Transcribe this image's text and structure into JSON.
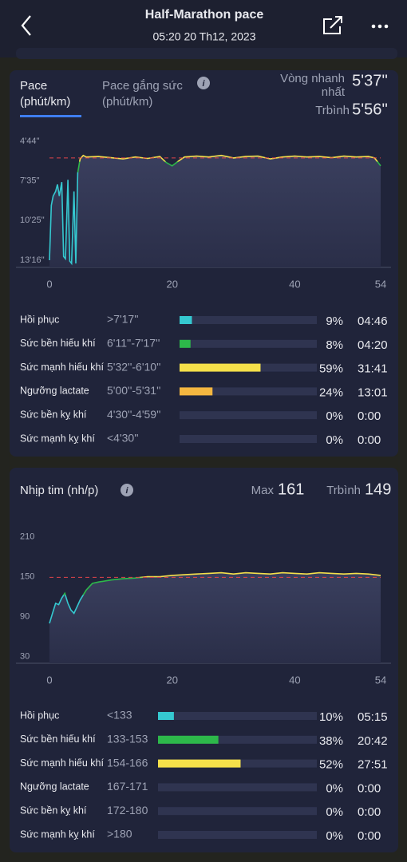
{
  "header": {
    "title": "Half-Marathon pace",
    "subtitle": "05:20 20 Th12, 2023"
  },
  "pace_card": {
    "tab": "Pace",
    "tab_unit": "(phút/km)",
    "tab2": "Pace gắng sức",
    "tab2_unit": "(phút/km)",
    "best_label": "Vòng nhanh nhất",
    "best_value": "5'37''",
    "avg_label": "Trbình",
    "avg_value": "5'56''",
    "chart_data": {
      "type": "line",
      "line_colors": [
        "#f5e04a",
        "#2db84a",
        "#35c8d0"
      ],
      "avg_color": "#e0434a",
      "avg": 356,
      "x": [
        0,
        0.3,
        0.6,
        1,
        1.3,
        1.6,
        2,
        2.3,
        2.6,
        3,
        3.3,
        3.6,
        4,
        4.3,
        4.6,
        5,
        5.5,
        6,
        8,
        10,
        12,
        14,
        16,
        18,
        19,
        20,
        21,
        22,
        24,
        26,
        28,
        30,
        32,
        34,
        36,
        38,
        40,
        42,
        44,
        46,
        48,
        50,
        52,
        53,
        54
      ],
      "values": [
        796,
        560,
        520,
        500,
        470,
        520,
        460,
        780,
        790,
        450,
        800,
        810,
        500,
        810,
        420,
        360,
        345,
        352,
        350,
        355,
        360,
        352,
        358,
        350,
        375,
        390,
        370,
        352,
        348,
        352,
        345,
        356,
        350,
        348,
        360,
        352,
        348,
        352,
        350,
        355,
        348,
        352,
        350,
        356,
        390
      ],
      "xlim": [
        0,
        54
      ],
      "xticks": [
        0,
        20,
        40,
        54
      ],
      "ylim": [
        827,
        243
      ],
      "yticks": [
        {
          "value": 284,
          "label": "4'44''"
        },
        {
          "value": 455,
          "label": "7'35''"
        },
        {
          "value": 625,
          "label": "10'25''"
        },
        {
          "value": 796,
          "label": "13'16''"
        }
      ]
    },
    "zones": {
      "names": [
        "Hồi phục",
        "Sức bền hiếu khí",
        "Sức mạnh hiếu khí",
        "Ngưỡng lactate",
        "Sức bền kỵ khí",
        "Sức mạnh kỵ khí"
      ],
      "ranges": [
        ">7'17''",
        "6'11''-7'17''",
        "5'32''-6'10''",
        "5'00''-5'31''",
        "4'30''-4'59''",
        "<4'30''"
      ],
      "values": [
        9,
        8,
        59,
        24,
        0,
        0
      ],
      "value_labels": [
        "9%",
        "8%",
        "59%",
        "24%",
        "0%",
        "0%"
      ],
      "times": [
        "04:46",
        "04:20",
        "31:41",
        "13:01",
        "0:00",
        "0:00"
      ],
      "colors": [
        "#35c8d0",
        "#2db84a",
        "#f5e04a",
        "#f4b740",
        "#f08a3c",
        "#e0434a"
      ]
    }
  },
  "heart_card": {
    "title": "Nhịp tim (nh/p)",
    "max_label": "Max",
    "max_value": "161",
    "avg_label": "Trbình",
    "avg_value": "149",
    "chart_data": {
      "type": "line",
      "line_colors": [
        "#f5e04a",
        "#2db84a",
        "#35c8d0"
      ],
      "avg_color": "#e0434a",
      "avg": 149,
      "x": [
        0,
        0.5,
        1,
        1.5,
        2,
        2.5,
        3,
        3.5,
        4,
        4.5,
        5,
        6,
        7,
        8,
        10,
        12,
        14,
        16,
        18,
        20,
        22,
        24,
        26,
        28,
        30,
        32,
        34,
        36,
        38,
        40,
        42,
        44,
        46,
        48,
        50,
        52,
        54
      ],
      "values": [
        80,
        95,
        110,
        108,
        118,
        125,
        110,
        100,
        95,
        105,
        115,
        130,
        140,
        142,
        145,
        147,
        148,
        150,
        150,
        152,
        153,
        154,
        155,
        156,
        154,
        156,
        155,
        154,
        156,
        155,
        154,
        156,
        155,
        154,
        155,
        154,
        152
      ],
      "xlim": [
        0,
        54
      ],
      "xticks": [
        0,
        20,
        40,
        54
      ],
      "ylim": [
        20,
        225
      ],
      "yticks": [
        30,
        90,
        150,
        210
      ]
    },
    "zones": {
      "names": [
        "Hồi phục",
        "Sức bền hiếu khí",
        "Sức mạnh hiếu khí",
        "Ngưỡng lactate",
        "Sức bền kỵ khí",
        "Sức mạnh kỵ khí"
      ],
      "ranges": [
        "<133",
        "133-153",
        "154-166",
        "167-171",
        "172-180",
        ">180"
      ],
      "values": [
        10,
        38,
        52,
        0,
        0,
        0
      ],
      "value_labels": [
        "10%",
        "38%",
        "52%",
        "0%",
        "0%",
        "0%"
      ],
      "times": [
        "05:15",
        "20:42",
        "27:51",
        "0:00",
        "0:00",
        "0:00"
      ],
      "colors": [
        "#35c8d0",
        "#2db84a",
        "#f5e04a",
        "#f4b740",
        "#f08a3c",
        "#e0434a"
      ]
    }
  }
}
